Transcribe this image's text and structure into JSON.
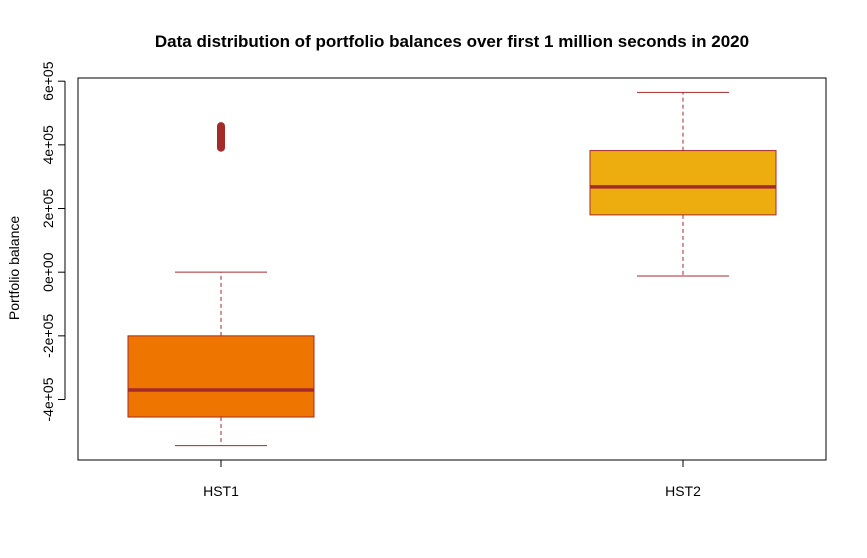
{
  "chart_data": {
    "type": "boxplot",
    "title": "Data distribution of portfolio balances over first 1 million seconds in 2020",
    "xlabel": "",
    "ylabel": "Portfolio balance",
    "categories": [
      "HST1",
      "HST2"
    ],
    "ylim": [
      -590000,
      610000
    ],
    "yticks": [
      -400000,
      -200000,
      0,
      200000,
      400000,
      600000
    ],
    "ytick_labels": [
      "-4e+05",
      "-2e+05",
      "0e+00",
      "2e+05",
      "4e+05",
      "6e+05"
    ],
    "boxes": [
      {
        "name": "HST1",
        "whisker_low": -545000,
        "q1": -455000,
        "median": -370000,
        "q3": -200000,
        "whisker_high": 0,
        "outliers_range": [
          380000,
          470000
        ],
        "fill": "#EE7600"
      },
      {
        "name": "HST2",
        "whisker_low": -12000,
        "q1": 180000,
        "median": 268000,
        "q3": 382000,
        "whisker_high": 565000,
        "outliers_range": [],
        "fill": "#EEAD0E"
      }
    ],
    "line_color": "#A52A2A",
    "grid": false,
    "legend": "none"
  }
}
